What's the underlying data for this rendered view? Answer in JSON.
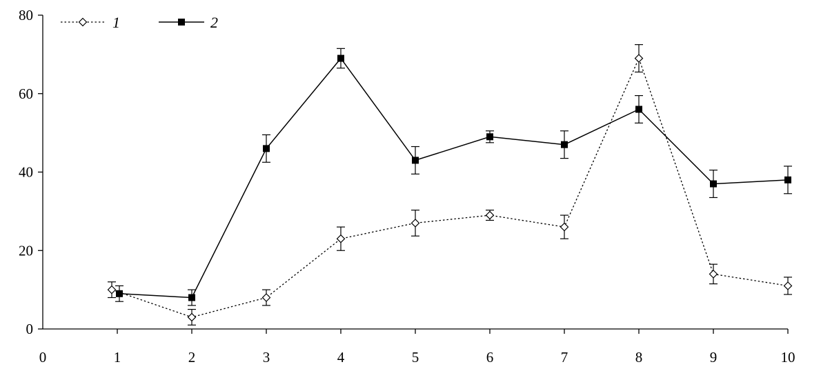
{
  "chart_data": {
    "type": "line",
    "x": [
      1,
      2,
      3,
      4,
      5,
      6,
      7,
      8,
      9,
      10
    ],
    "xlim": [
      0,
      10
    ],
    "ylim": [
      0,
      80
    ],
    "x_ticks": [
      "0",
      "1",
      "2",
      "3",
      "4",
      "5",
      "6",
      "7",
      "8",
      "9",
      "10"
    ],
    "y_ticks": [
      "0",
      "20",
      "40",
      "60",
      "80"
    ],
    "title": "",
    "xlabel": "",
    "ylabel": "",
    "grid": false,
    "legend_position": "top-left",
    "series": [
      {
        "name": "1",
        "line_style": "dotted",
        "marker": "open-diamond",
        "color": "#000000",
        "values": [
          10,
          3,
          8,
          23,
          27,
          29,
          26,
          69,
          14,
          11
        ],
        "errors": [
          2,
          2,
          2,
          3,
          3.3,
          1.3,
          3,
          3.5,
          2.5,
          2.2
        ]
      },
      {
        "name": "2",
        "line_style": "solid",
        "marker": "filled-square",
        "color": "#000000",
        "values": [
          9,
          8,
          46,
          69,
          43,
          49,
          47,
          56,
          37,
          38
        ],
        "errors": [
          2,
          2,
          3.5,
          2.5,
          3.5,
          1.5,
          3.5,
          3.5,
          3.5,
          3.5
        ]
      }
    ]
  }
}
